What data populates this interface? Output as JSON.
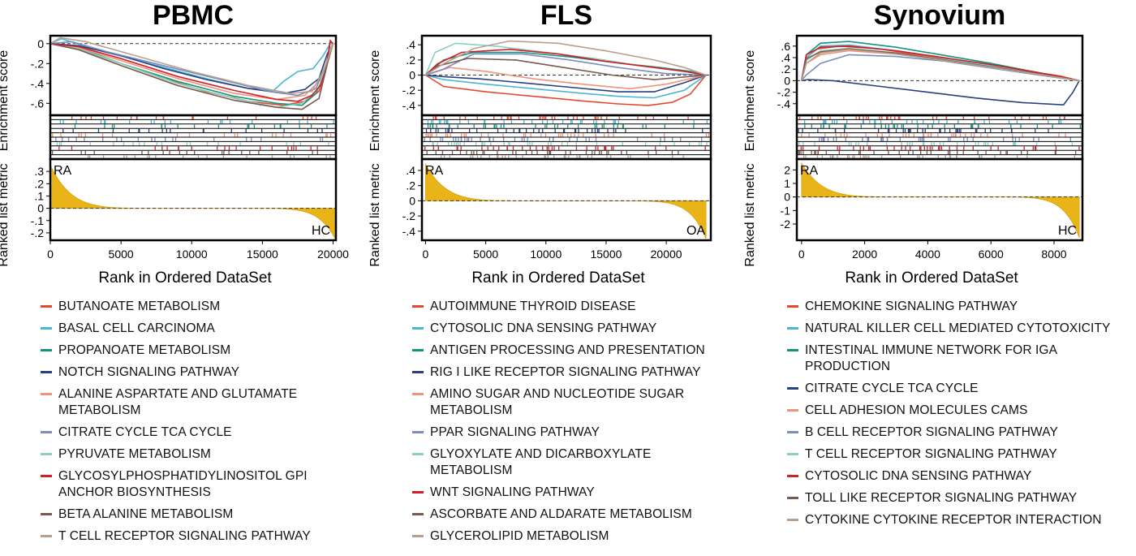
{
  "colors": [
    "#e5482f",
    "#4bb6d3",
    "#12957a",
    "#2a3f7f",
    "#f0937c",
    "#7c8cbf",
    "#89d1be",
    "#d11f27",
    "#7a5a4f",
    "#b8a08c"
  ],
  "axis_labels": {
    "enrichment": "Enrichment score",
    "ranked": "Ranked list metric",
    "rank": "Rank in Ordered DataSet"
  },
  "chart_data": [
    {
      "type": "line",
      "title": "PBMC",
      "xlabel": "Rank in Ordered DataSet",
      "xlim": [
        0,
        20200
      ],
      "xticks": [
        0,
        5000,
        10000,
        15000,
        20000
      ],
      "es_ylim": [
        -0.72,
        0.08
      ],
      "es_ticks": [
        0,
        -0.2,
        -0.4,
        -0.6
      ],
      "metric_ylim": [
        -0.26,
        0.4
      ],
      "metric_ticks": [
        0.3,
        0.2,
        0.1,
        0,
        -0.1,
        -0.2
      ],
      "metric_top": 0.35,
      "metric_bottom": -0.26,
      "group_left": "RA",
      "group_right": "HC",
      "series": [
        {
          "name": "BUTANOATE METABOLISM",
          "x": [
            0,
            2000,
            5000,
            8000,
            11000,
            14000,
            16500,
            18000,
            19000,
            19500,
            19800,
            20000
          ],
          "y": [
            0,
            -0.05,
            -0.2,
            -0.35,
            -0.48,
            -0.58,
            -0.62,
            -0.58,
            -0.48,
            -0.25,
            0.02,
            0
          ]
        },
        {
          "name": "BASAL CELL CARCINOMA",
          "x": [
            0,
            800,
            3000,
            7000,
            11000,
            14000,
            15800,
            16500,
            17500,
            18600,
            19300,
            19800,
            20000
          ],
          "y": [
            0,
            0.05,
            -0.05,
            -0.2,
            -0.35,
            -0.45,
            -0.47,
            -0.38,
            -0.28,
            -0.25,
            -0.12,
            0,
            0
          ]
        },
        {
          "name": "PROPANOATE METABOLISM",
          "x": [
            0,
            2000,
            5000,
            9000,
            13000,
            16000,
            17800,
            18800,
            19400,
            19800,
            20000
          ],
          "y": [
            0,
            -0.04,
            -0.2,
            -0.38,
            -0.53,
            -0.6,
            -0.62,
            -0.5,
            -0.3,
            -0.05,
            0
          ]
        },
        {
          "name": "NOTCH SIGNALING PATHWAY",
          "x": [
            0,
            2000,
            5000,
            8000,
            11000,
            14000,
            16500,
            18000,
            19000,
            19600,
            20000
          ],
          "y": [
            0,
            -0.02,
            -0.12,
            -0.25,
            -0.36,
            -0.45,
            -0.5,
            -0.46,
            -0.35,
            -0.1,
            0
          ]
        },
        {
          "name": "ALANINE ASPARTATE AND GLUTAMATE METABOLISM",
          "x": [
            0,
            2000,
            5000,
            9000,
            13000,
            16000,
            18000,
            19200,
            19800,
            20000
          ],
          "y": [
            0,
            -0.04,
            -0.17,
            -0.35,
            -0.5,
            -0.56,
            -0.52,
            -0.35,
            -0.05,
            0
          ]
        },
        {
          "name": "CITRATE CYCLE TCA CYCLE",
          "x": [
            0,
            1500,
            4000,
            8000,
            12000,
            15500,
            17500,
            18800,
            19500,
            20000
          ],
          "y": [
            0,
            0.02,
            -0.08,
            -0.22,
            -0.36,
            -0.48,
            -0.52,
            -0.45,
            -0.2,
            0
          ]
        },
        {
          "name": "PYRUVATE METABOLISM",
          "x": [
            0,
            2000,
            5000,
            9000,
            13000,
            16000,
            17800,
            19000,
            19700,
            20000
          ],
          "y": [
            0,
            -0.05,
            -0.2,
            -0.4,
            -0.55,
            -0.64,
            -0.6,
            -0.45,
            -0.1,
            0
          ]
        },
        {
          "name": "GLYCOSYLPHOSPHATIDYLINOSITOL GPI ANCHOR BIOSYNTHESIS",
          "x": [
            0,
            2000,
            5000,
            9000,
            13000,
            16000,
            17500,
            18500,
            19100,
            19500,
            19800,
            20000
          ],
          "y": [
            0,
            -0.03,
            -0.15,
            -0.33,
            -0.47,
            -0.56,
            -0.58,
            -0.52,
            -0.42,
            -0.25,
            0.03,
            0
          ]
        },
        {
          "name": "BETA ALANINE METABOLISM",
          "x": [
            0,
            2000,
            5000,
            9000,
            13000,
            16000,
            17800,
            19000,
            19600,
            20000
          ],
          "y": [
            0,
            -0.06,
            -0.22,
            -0.42,
            -0.57,
            -0.64,
            -0.66,
            -0.55,
            -0.2,
            0
          ]
        },
        {
          "name": "T CELL RECEPTOR SIGNALING PATHWAY",
          "x": [
            0,
            700,
            2500,
            6000,
            10000,
            14000,
            17000,
            18500,
            19400,
            20000
          ],
          "y": [
            0,
            0.06,
            0.02,
            -0.12,
            -0.28,
            -0.42,
            -0.5,
            -0.48,
            -0.25,
            0
          ]
        }
      ]
    },
    {
      "type": "line",
      "title": "FLS",
      "xlabel": "Rank in Ordered DataSet",
      "xlim": [
        -300,
        23700
      ],
      "xticks": [
        0,
        5000,
        10000,
        15000,
        20000
      ],
      "es_ylim": [
        -0.53,
        0.52
      ],
      "es_ticks": [
        0.4,
        0.2,
        0,
        -0.2,
        -0.4
      ],
      "metric_ylim": [
        -0.52,
        0.55
      ],
      "metric_ticks": [
        0.4,
        0.2,
        0,
        -0.2,
        -0.4
      ],
      "metric_top": 0.48,
      "metric_bottom": -0.5,
      "group_left": "RA",
      "group_right": "OA",
      "series": [
        {
          "name": "AUTOIMMUNE THYROID DISEASE",
          "x": [
            0,
            1500,
            5000,
            9000,
            13000,
            16000,
            18500,
            20500,
            22000,
            23300
          ],
          "y": [
            0,
            -0.15,
            -0.22,
            -0.28,
            -0.34,
            -0.38,
            -0.4,
            -0.36,
            -0.25,
            0
          ]
        },
        {
          "name": "CYTOSOLIC DNA SENSING PATHWAY",
          "x": [
            0,
            1500,
            5000,
            9000,
            13000,
            16000,
            19000,
            21500,
            23300
          ],
          "y": [
            0,
            -0.06,
            -0.12,
            -0.18,
            -0.24,
            -0.28,
            -0.3,
            -0.2,
            0
          ]
        },
        {
          "name": "ANTIGEN PROCESSING AND PRESENTATION",
          "x": [
            0,
            1500,
            4000,
            8000,
            12000,
            16000,
            19500,
            22000,
            23300
          ],
          "y": [
            0,
            0.2,
            0.3,
            0.3,
            0.24,
            0.16,
            0.1,
            0.05,
            0
          ]
        },
        {
          "name": "RIG I LIKE RECEPTOR SIGNALING PATHWAY",
          "x": [
            0,
            1500,
            4500,
            8000,
            12000,
            16000,
            19000,
            21500,
            23300
          ],
          "y": [
            0,
            -0.02,
            -0.05,
            -0.1,
            -0.16,
            -0.22,
            -0.22,
            -0.1,
            0
          ]
        },
        {
          "name": "AMINO SUGAR AND NUCLEOTIDE SUGAR METABOLISM",
          "x": [
            0,
            2000,
            5000,
            9000,
            13000,
            17000,
            20000,
            23300
          ],
          "y": [
            0,
            0.1,
            0.05,
            -0.05,
            -0.12,
            -0.18,
            -0.12,
            0
          ]
        },
        {
          "name": "PPAR SIGNALING PATHWAY",
          "x": [
            0,
            1500,
            4000,
            8000,
            12000,
            16000,
            20000,
            23300
          ],
          "y": [
            0,
            0.08,
            0.28,
            0.28,
            0.2,
            0.1,
            0.02,
            0
          ]
        },
        {
          "name": "GLYOXYLATE AND DICARBOXYLATE METABOLISM",
          "x": [
            0,
            800,
            2500,
            6000,
            10000,
            14000,
            18000,
            21500,
            23300
          ],
          "y": [
            0,
            0.3,
            0.42,
            0.38,
            0.3,
            0.22,
            0.12,
            0.05,
            0
          ]
        },
        {
          "name": "WNT SIGNALING PATHWAY",
          "x": [
            0,
            1000,
            3000,
            7000,
            11000,
            15000,
            19000,
            21500,
            23300
          ],
          "y": [
            0,
            0.15,
            0.3,
            0.34,
            0.28,
            0.18,
            0.1,
            0.05,
            0
          ]
        },
        {
          "name": "ASCORBATE AND ALDARATE METABOLISM",
          "x": [
            0,
            1000,
            3500,
            7500,
            11500,
            15500,
            19000,
            23300
          ],
          "y": [
            0,
            0.12,
            0.22,
            0.2,
            0.1,
            0.0,
            -0.06,
            0
          ]
        },
        {
          "name": "GLYCEROLIPID METABOLISM",
          "x": [
            0,
            1500,
            4000,
            7000,
            11000,
            15000,
            19000,
            21500,
            23300
          ],
          "y": [
            0,
            0.15,
            0.35,
            0.45,
            0.42,
            0.32,
            0.2,
            0.1,
            0
          ]
        }
      ]
    },
    {
      "type": "line",
      "title": "Synovium",
      "xlabel": "Rank in Ordered DataSet",
      "xlim": [
        -150,
        8900
      ],
      "xticks": [
        0,
        2000,
        4000,
        6000,
        8000
      ],
      "es_ylim": [
        -0.6,
        0.78
      ],
      "es_ticks": [
        0.6,
        0.4,
        0.2,
        0,
        -0.2,
        -0.4
      ],
      "metric_ylim": [
        -3.2,
        2.8
      ],
      "metric_ticks": [
        2,
        1,
        0,
        -1,
        -2
      ],
      "metric_top": 2.5,
      "metric_bottom": -3.0,
      "group_left": "RA",
      "group_right": "HC",
      "series": [
        {
          "name": "CHEMOKINE SIGNALING PATHWAY",
          "x": [
            0,
            150,
            500,
            1200,
            2500,
            4000,
            5500,
            7000,
            8200,
            8800
          ],
          "y": [
            0,
            0.4,
            0.55,
            0.6,
            0.55,
            0.42,
            0.3,
            0.18,
            0.08,
            0
          ]
        },
        {
          "name": "NATURAL KILLER CELL MEDIATED CYTOTOXICITY",
          "x": [
            0,
            150,
            600,
            1500,
            3000,
            4500,
            6000,
            7500,
            8800
          ],
          "y": [
            0,
            0.4,
            0.6,
            0.62,
            0.52,
            0.4,
            0.26,
            0.12,
            0
          ]
        },
        {
          "name": "INTESTINAL IMMUNE NETWORK FOR IGA PRODUCTION",
          "x": [
            0,
            150,
            600,
            1500,
            3000,
            4500,
            6000,
            7500,
            8800
          ],
          "y": [
            0,
            0.45,
            0.65,
            0.68,
            0.58,
            0.44,
            0.3,
            0.14,
            0
          ]
        },
        {
          "name": "CITRATE CYCLE TCA CYCLE",
          "x": [
            0,
            200,
            1000,
            2500,
            4000,
            5500,
            7000,
            8300,
            8600,
            8800
          ],
          "y": [
            0,
            0.02,
            0.0,
            -0.1,
            -0.2,
            -0.3,
            -0.38,
            -0.42,
            -0.2,
            0
          ]
        },
        {
          "name": "CELL ADHESION MOLECULES CAMS",
          "x": [
            0,
            150,
            600,
            1500,
            3000,
            4500,
            6000,
            7500,
            8800
          ],
          "y": [
            0,
            0.3,
            0.45,
            0.52,
            0.46,
            0.36,
            0.24,
            0.12,
            0
          ]
        },
        {
          "name": "B CELL RECEPTOR SIGNALING PATHWAY",
          "x": [
            0,
            150,
            600,
            1500,
            3000,
            4500,
            6000,
            7500,
            8800
          ],
          "y": [
            0,
            0.1,
            0.3,
            0.45,
            0.42,
            0.34,
            0.22,
            0.1,
            0
          ]
        },
        {
          "name": "T CELL RECEPTOR SIGNALING PATHWAY",
          "x": [
            0,
            150,
            600,
            1500,
            3000,
            4500,
            6000,
            7500,
            8800
          ],
          "y": [
            0,
            0.35,
            0.52,
            0.56,
            0.48,
            0.37,
            0.25,
            0.12,
            0
          ]
        },
        {
          "name": "CYTOSOLIC DNA SENSING PATHWAY",
          "x": [
            0,
            150,
            600,
            1500,
            3000,
            4500,
            6000,
            7500,
            8800
          ],
          "y": [
            0,
            0.45,
            0.58,
            0.6,
            0.52,
            0.4,
            0.28,
            0.14,
            0
          ]
        },
        {
          "name": "TOLL LIKE RECEPTOR SIGNALING PATHWAY",
          "x": [
            0,
            150,
            600,
            1500,
            3000,
            4500,
            6000,
            7500,
            8800
          ],
          "y": [
            0,
            0.38,
            0.5,
            0.55,
            0.48,
            0.36,
            0.24,
            0.12,
            0
          ]
        },
        {
          "name": "CYTOKINE CYTOKINE RECEPTOR INTERACTION",
          "x": [
            0,
            150,
            600,
            1500,
            3000,
            4500,
            6000,
            7500,
            8800
          ],
          "y": [
            0,
            0.3,
            0.48,
            0.54,
            0.46,
            0.35,
            0.23,
            0.11,
            0
          ]
        }
      ]
    }
  ]
}
